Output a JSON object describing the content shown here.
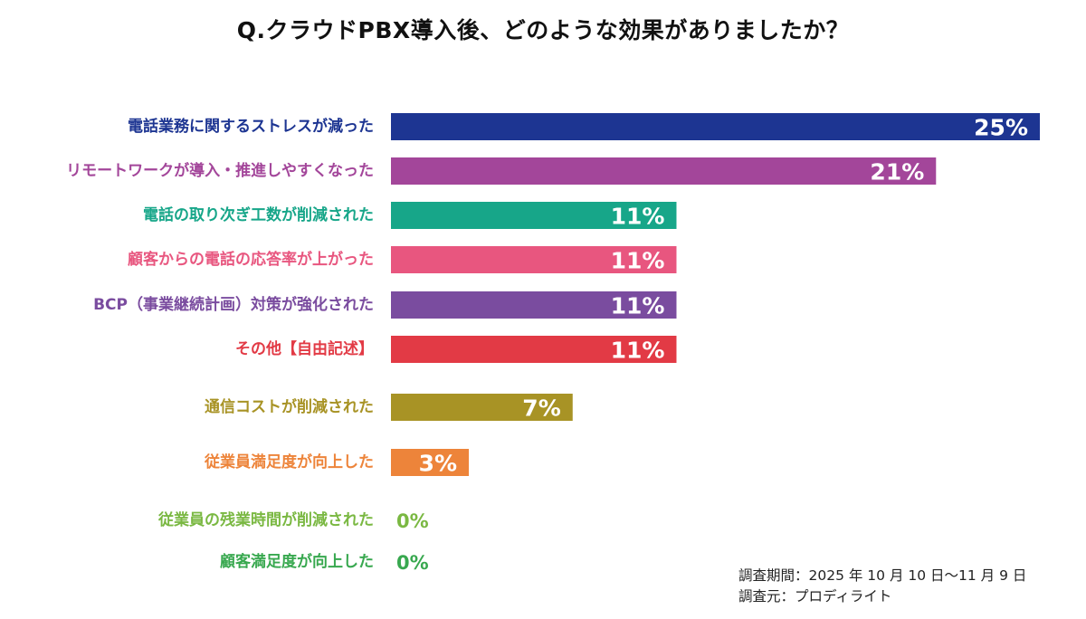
{
  "chart_data": {
    "type": "bar",
    "orientation": "horizontal",
    "title": "Q.クラウドPBX導入後、どのような効果がありましたか？",
    "value_unit": "%",
    "xlim": [
      0,
      25
    ],
    "grid": false,
    "categories": [
      "電話業務に関するストレスが減った",
      "リモートワークが導入・推進しやすくなった",
      "電話の取り次ぎ工数が削減された",
      "顧客からの電話の応答率が上がった",
      "BCP（事業継続計画）対策が強化された",
      "その他【自由記述】",
      "通信コストが削減された",
      "従業員満足度が向上した",
      "従業員の残業時間が削減された",
      "顧客満足度が向上した"
    ],
    "values": [
      25,
      21,
      11,
      11,
      11,
      11,
      7,
      3,
      0,
      0
    ],
    "value_labels": [
      "25%",
      "21%",
      "11%",
      "11%",
      "11%",
      "11%",
      "7%",
      "3%",
      "0%",
      "0%"
    ],
    "colors": [
      "#1d3592",
      "#a3469a",
      "#17a689",
      "#e8567f",
      "#7a4c9f",
      "#e23a45",
      "#a89325",
      "#ed843a",
      "#7ab842",
      "#38a84f"
    ]
  },
  "footnote": {
    "period": "調査期間：2025 年 10 月 10 日〜11 月 9 日",
    "source": "調査元：プロディライト"
  }
}
